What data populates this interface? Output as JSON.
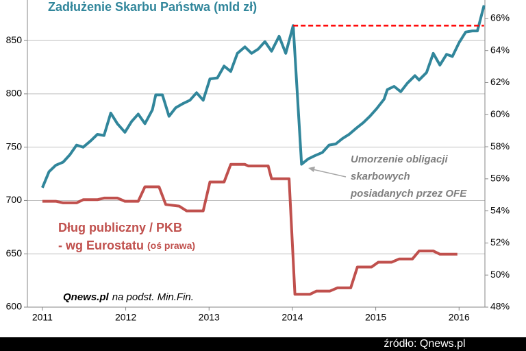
{
  "chart_data": {
    "type": "line",
    "xlim": [
      2010.82,
      2016.31
    ],
    "xticks": [
      2011,
      2012,
      2013,
      2014,
      2015,
      2016
    ],
    "ylim": [
      600,
      888
    ],
    "yticks": [
      600,
      650,
      700,
      750,
      800,
      850
    ],
    "y2lim": [
      48,
      67.15
    ],
    "y2ticks": [
      {
        "value": 48,
        "label": "48%"
      },
      {
        "value": 50,
        "label": "50%"
      },
      {
        "value": 52,
        "label": "52%"
      },
      {
        "value": 54,
        "label": "54%"
      },
      {
        "value": 56,
        "label": "56%"
      },
      {
        "value": 58,
        "label": "58%"
      },
      {
        "value": 60,
        "label": "60%"
      },
      {
        "value": 62,
        "label": "62%"
      },
      {
        "value": 64,
        "label": "64%"
      },
      {
        "value": 66,
        "label": "66%"
      }
    ],
    "grid": true,
    "series": [
      {
        "name": "Zadłużenie Skarbu Państwa (mld zł)",
        "color": "#31869b",
        "x": [
          2011.0,
          2011.08,
          2011.16,
          2011.25,
          2011.33,
          2011.41,
          2011.49,
          2011.58,
          2011.66,
          2011.74,
          2011.82,
          2011.9,
          2011.99,
          2012.07,
          2012.15,
          2012.23,
          2012.32,
          2012.36,
          2012.44,
          2012.52,
          2012.6,
          2012.69,
          2012.77,
          2012.85,
          2012.93,
          2013.01,
          2013.1,
          2013.18,
          2013.26,
          2013.34,
          2013.43,
          2013.51,
          2013.59,
          2013.67,
          2013.75,
          2013.84,
          2013.92,
          2014.01,
          2014.11,
          2014.19,
          2014.27,
          2014.36,
          2014.44,
          2014.52,
          2014.6,
          2014.68,
          2014.77,
          2014.85,
          2014.93,
          2015.01,
          2015.1,
          2015.14,
          2015.22,
          2015.3,
          2015.38,
          2015.47,
          2015.52,
          2015.61,
          2015.69,
          2015.77,
          2015.85,
          2015.92,
          2016.0,
          2016.08,
          2016.16,
          2016.22,
          2016.3
        ],
        "values": [
          712,
          727,
          733,
          736,
          743,
          752,
          750,
          756,
          762,
          761,
          782,
          772,
          764,
          774,
          781,
          772,
          785,
          799,
          799,
          779,
          787,
          791,
          794,
          801,
          794,
          814,
          815,
          826,
          821,
          838,
          844,
          838,
          842,
          849,
          840,
          854,
          838,
          864,
          734,
          739,
          742,
          745,
          752,
          753,
          758,
          762,
          768,
          773,
          779,
          786,
          795,
          804,
          807,
          802,
          810,
          817,
          813,
          820,
          838,
          827,
          837,
          835,
          848,
          858,
          859,
          859,
          883
        ]
      },
      {
        "name": "Dług publiczny / PKB",
        "color": "#c0504d",
        "axis": "y2",
        "x": [
          2011.0,
          2011.16,
          2011.25,
          2011.41,
          2011.49,
          2011.66,
          2011.74,
          2011.9,
          2011.99,
          2012.15,
          2012.23,
          2012.4,
          2012.48,
          2012.64,
          2012.73,
          2012.93,
          2013.01,
          2013.18,
          2013.26,
          2013.43,
          2013.47,
          2013.71,
          2013.75,
          2013.96,
          2014.03,
          2014.21,
          2014.29,
          2014.45,
          2014.54,
          2014.7,
          2014.78,
          2014.95,
          2015.03,
          2015.19,
          2015.28,
          2015.44,
          2015.52,
          2015.69,
          2015.77,
          2015.85,
          2015.98
        ],
        "values": [
          54.6,
          54.6,
          54.5,
          54.5,
          54.7,
          54.7,
          54.8,
          54.8,
          54.6,
          54.6,
          55.5,
          55.5,
          54.4,
          54.3,
          54.0,
          54.0,
          55.8,
          55.8,
          56.9,
          56.9,
          56.8,
          56.8,
          56.0,
          56.0,
          48.8,
          48.8,
          49.0,
          49.0,
          49.2,
          49.2,
          50.5,
          50.5,
          50.8,
          50.8,
          51.0,
          51.0,
          51.5,
          51.5,
          51.3,
          51.3,
          51.3
        ]
      }
    ],
    "reference_line": {
      "value": 864,
      "x": [
        2014.01,
        2016.3
      ],
      "color": "#ff0000"
    },
    "annotations": {
      "eurostat": "- wg Eurostatu",
      "right_axis_note": "(oś prawa)",
      "write_off": [
        "Umorzenie obligacji",
        "skarbowych",
        "posiadanych przez OFE"
      ],
      "source_brand": "Qnews.pl",
      "source_rest": "na podst. Min.Fin.",
      "footer": "źródło: Qnews.pl"
    }
  }
}
